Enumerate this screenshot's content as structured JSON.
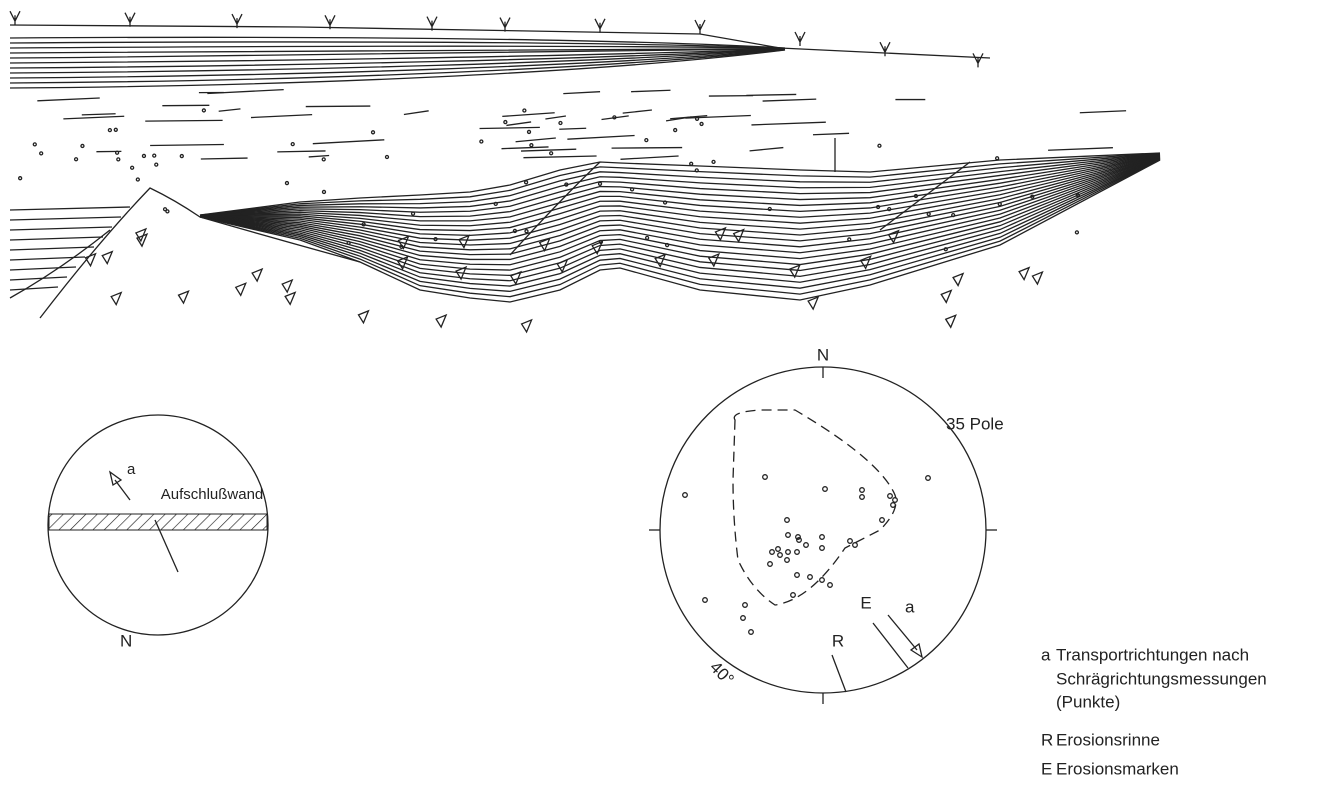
{
  "orientation_sketch": {
    "arrow_label": "a",
    "wall_label": "Aufschlußwand",
    "north": "N"
  },
  "stereonet": {
    "north": "N",
    "count_label": "35 Pole",
    "angle_label": "40°",
    "r_label": "R",
    "e_label": "E",
    "a_label": "a"
  },
  "legend": [
    {
      "key": "a",
      "text": [
        "Transportrichtungen nach",
        "Schrägrichtungsmessungen",
        "(Punkte)"
      ]
    },
    {
      "key": "R",
      "text": "Erosionsrinne"
    },
    {
      "key": "E",
      "text": "Erosionsmarken"
    }
  ]
}
